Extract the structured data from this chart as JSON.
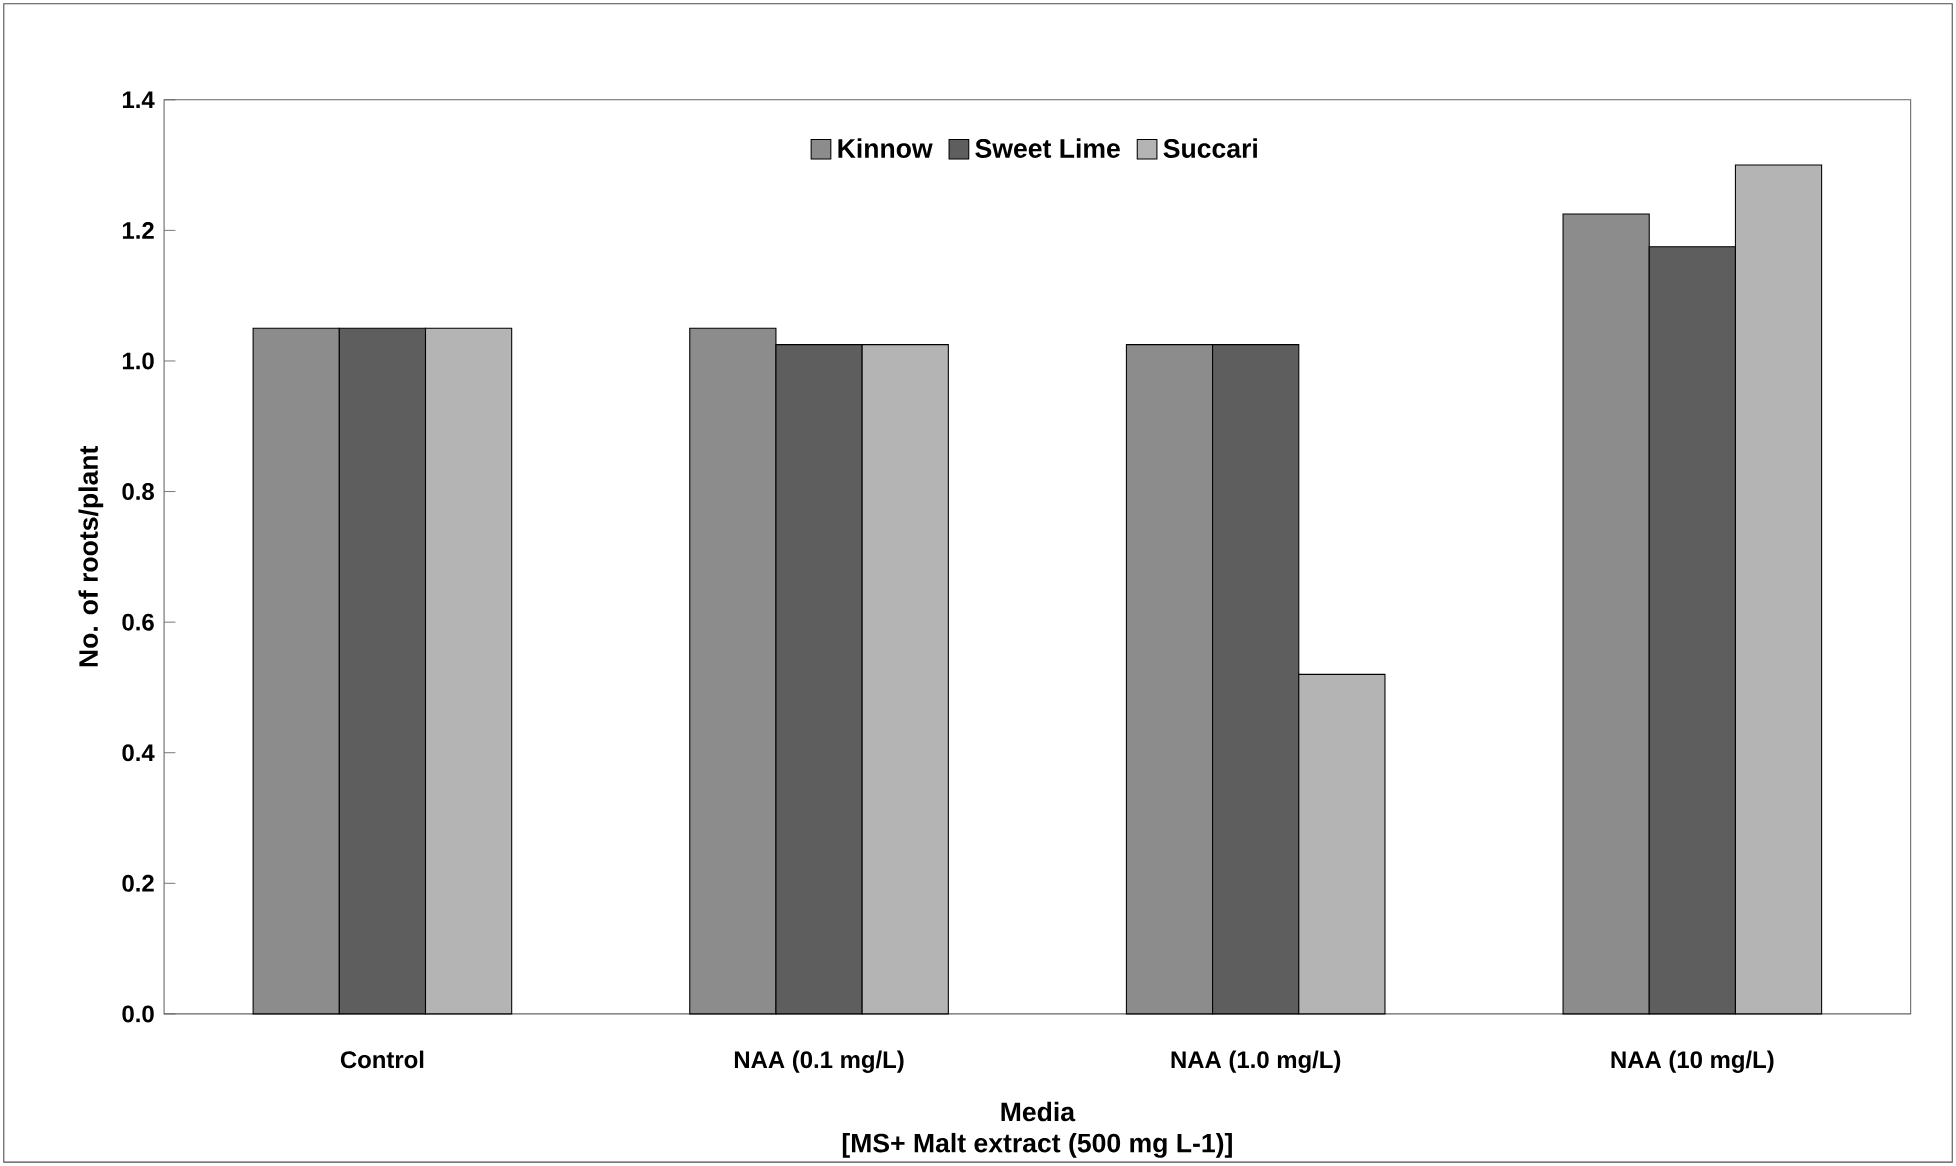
{
  "chart_data": {
    "type": "bar",
    "categories": [
      "Control",
      "NAA (0.1 mg/L)",
      "NAA (1.0 mg/L)",
      "NAA (10 mg/L)"
    ],
    "series": [
      {
        "name": "Kinnow",
        "color": "#8c8c8c",
        "values": [
          1.05,
          1.05,
          1.025,
          1.225
        ]
      },
      {
        "name": "Sweet Lime",
        "color": "#5e5e5e",
        "values": [
          1.05,
          1.025,
          1.025,
          1.175
        ]
      },
      {
        "name": "Succari",
        "color": "#b4b4b4",
        "values": [
          1.05,
          1.025,
          0.52,
          1.3
        ]
      }
    ],
    "xlabel": "Media",
    "ylabel": "No. of roots/plant",
    "annotations": [
      "[MS+ Malt extract (500 mg L-1)]"
    ],
    "ylim": [
      0,
      1.4
    ],
    "yticks": [
      {
        "value": 0,
        "label": "0.0"
      },
      {
        "value": 0.2,
        "label": "0.2"
      },
      {
        "value": 0.4,
        "label": "0.4"
      },
      {
        "value": 0.6,
        "label": "0.6"
      },
      {
        "value": 0.8,
        "label": "0.8"
      },
      {
        "value": 1.0,
        "label": "1.0"
      },
      {
        "value": 1.2,
        "label": "1.2"
      },
      {
        "value": 1.4,
        "label": "1.4"
      }
    ],
    "legend": "top",
    "grid": false
  }
}
